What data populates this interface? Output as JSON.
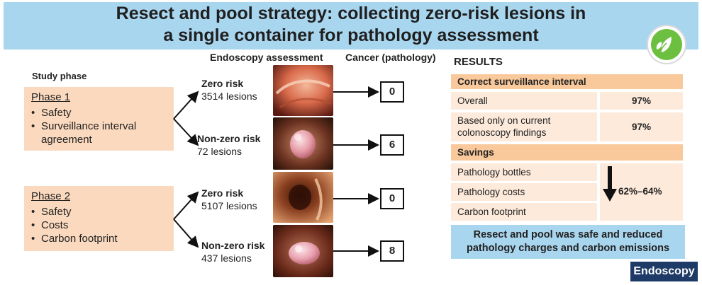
{
  "title": {
    "line1": "Resect and pool strategy: collecting zero-risk lesions in",
    "line2": "a single container for pathology assessment"
  },
  "headers": {
    "endoscopy": "Endoscopy assessment",
    "cancer": "Cancer (pathology)",
    "study_phase": "Study phase"
  },
  "phases": [
    {
      "title": "Phase 1",
      "items": [
        "Safety",
        "Surveillance interval",
        "agreement"
      ]
    },
    {
      "title": "Phase 2",
      "items": [
        "Safety",
        "Costs",
        "Carbon footprint"
      ]
    }
  ],
  "branches": [
    {
      "risk": "Zero risk",
      "lesions": "3514 lesions",
      "cancer": "0"
    },
    {
      "risk": "Non-zero risk",
      "lesions": "72 lesions",
      "cancer": "6"
    },
    {
      "risk": "Zero risk",
      "lesions": "5107 lesions",
      "cancer": "0"
    },
    {
      "risk": "Non-zero risk",
      "lesions": "437 lesions",
      "cancer": "8"
    }
  ],
  "results": {
    "heading": "RESULTS",
    "section1": "Correct surveillance interval",
    "rows1": [
      {
        "label": "Overall",
        "value": "97%"
      },
      {
        "label1": "Based only on current",
        "label2": "colonoscopy findings",
        "value": "97%"
      }
    ],
    "section2": "Savings",
    "savings_items": [
      "Pathology bottles",
      "Pathology costs",
      "Carbon footprint"
    ],
    "savings_value": "62%–64%",
    "conclusion_line1": "Resect and pool was safe and reduced",
    "conclusion_line2": "pathology charges and carbon emissions"
  },
  "journal": "Endoscopy",
  "colors": {
    "banner": "#a9d6ef",
    "phase_box": "#fad9be",
    "section_bar": "#f9c89b",
    "cell": "#fdeadb",
    "journal_badge": "#1e3a66",
    "logo_green": "#6cbf3f"
  }
}
